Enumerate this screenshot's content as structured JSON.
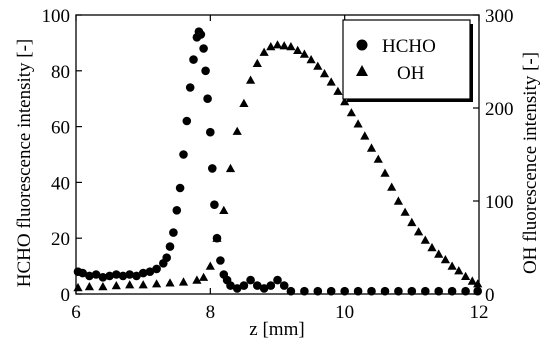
{
  "chart_data": {
    "type": "scatter",
    "xlabel": "z [mm]",
    "ylabel_left": "HCHO fluorescence intensity [-]",
    "ylabel_right": "OH fluorescence intensity [-]",
    "xlim": [
      6,
      12
    ],
    "ylim_left": [
      0,
      100
    ],
    "ylim_right": [
      0,
      300
    ],
    "x_ticks": [
      6,
      8,
      10,
      12
    ],
    "y_ticks_left": [
      0,
      20,
      40,
      60,
      80,
      100
    ],
    "y_ticks_right": [
      0,
      100,
      200,
      300
    ],
    "grid": false,
    "legend_position": "top-right",
    "series": [
      {
        "name": "HCHO",
        "marker": "circle",
        "axis": "left",
        "points": [
          [
            6.03,
            8
          ],
          [
            6.1,
            7.5
          ],
          [
            6.2,
            6.5
          ],
          [
            6.3,
            7
          ],
          [
            6.4,
            6
          ],
          [
            6.5,
            6.5
          ],
          [
            6.6,
            7
          ],
          [
            6.7,
            6.5
          ],
          [
            6.8,
            7
          ],
          [
            6.9,
            6.5
          ],
          [
            7.0,
            7.5
          ],
          [
            7.1,
            8
          ],
          [
            7.2,
            9
          ],
          [
            7.3,
            11
          ],
          [
            7.35,
            13
          ],
          [
            7.4,
            17
          ],
          [
            7.45,
            22
          ],
          [
            7.5,
            30
          ],
          [
            7.55,
            38
          ],
          [
            7.6,
            50
          ],
          [
            7.65,
            62
          ],
          [
            7.7,
            74
          ],
          [
            7.75,
            84
          ],
          [
            7.8,
            92
          ],
          [
            7.83,
            94
          ],
          [
            7.86,
            93
          ],
          [
            7.9,
            88
          ],
          [
            7.93,
            80
          ],
          [
            7.96,
            70
          ],
          [
            8.0,
            58
          ],
          [
            8.03,
            45
          ],
          [
            8.06,
            32
          ],
          [
            8.1,
            20
          ],
          [
            8.15,
            12
          ],
          [
            8.2,
            7
          ],
          [
            8.25,
            5
          ],
          [
            8.3,
            3
          ],
          [
            8.4,
            2
          ],
          [
            8.5,
            3
          ],
          [
            8.6,
            5
          ],
          [
            8.7,
            3
          ],
          [
            8.8,
            2
          ],
          [
            8.9,
            3
          ],
          [
            9.0,
            5
          ],
          [
            9.1,
            3
          ],
          [
            9.2,
            1
          ],
          [
            9.4,
            1
          ],
          [
            9.6,
            1
          ],
          [
            9.8,
            1
          ],
          [
            10.0,
            1
          ],
          [
            10.2,
            1
          ],
          [
            10.4,
            1
          ],
          [
            10.6,
            1
          ],
          [
            10.8,
            1
          ],
          [
            11.0,
            1
          ],
          [
            11.2,
            1
          ],
          [
            11.4,
            1
          ],
          [
            11.6,
            1
          ],
          [
            11.8,
            1
          ],
          [
            11.98,
            1
          ]
        ]
      },
      {
        "name": "OH",
        "marker": "triangle",
        "axis": "right",
        "points": [
          [
            6.03,
            7
          ],
          [
            6.2,
            8
          ],
          [
            6.4,
            8
          ],
          [
            6.6,
            9
          ],
          [
            6.8,
            10
          ],
          [
            7.0,
            10
          ],
          [
            7.2,
            11
          ],
          [
            7.4,
            12
          ],
          [
            7.6,
            13
          ],
          [
            7.8,
            15
          ],
          [
            7.9,
            18
          ],
          [
            8.0,
            30
          ],
          [
            8.1,
            60
          ],
          [
            8.2,
            90
          ],
          [
            8.3,
            135
          ],
          [
            8.4,
            175
          ],
          [
            8.5,
            205
          ],
          [
            8.6,
            230
          ],
          [
            8.7,
            248
          ],
          [
            8.8,
            260
          ],
          [
            8.9,
            266
          ],
          [
            9.0,
            268
          ],
          [
            9.1,
            267
          ],
          [
            9.2,
            266
          ],
          [
            9.3,
            262
          ],
          [
            9.4,
            258
          ],
          [
            9.5,
            252
          ],
          [
            9.6,
            245
          ],
          [
            9.7,
            237
          ],
          [
            9.8,
            228
          ],
          [
            9.9,
            218
          ],
          [
            10.0,
            207
          ],
          [
            10.1,
            195
          ],
          [
            10.2,
            183
          ],
          [
            10.3,
            170
          ],
          [
            10.4,
            157
          ],
          [
            10.5,
            145
          ],
          [
            10.6,
            130
          ],
          [
            10.7,
            115
          ],
          [
            10.8,
            100
          ],
          [
            10.9,
            88
          ],
          [
            11.0,
            77
          ],
          [
            11.1,
            67
          ],
          [
            11.2,
            58
          ],
          [
            11.3,
            50
          ],
          [
            11.4,
            43
          ],
          [
            11.5,
            37
          ],
          [
            11.6,
            30
          ],
          [
            11.7,
            25
          ],
          [
            11.8,
            19
          ],
          [
            11.9,
            14
          ],
          [
            11.98,
            11
          ]
        ]
      }
    ]
  }
}
